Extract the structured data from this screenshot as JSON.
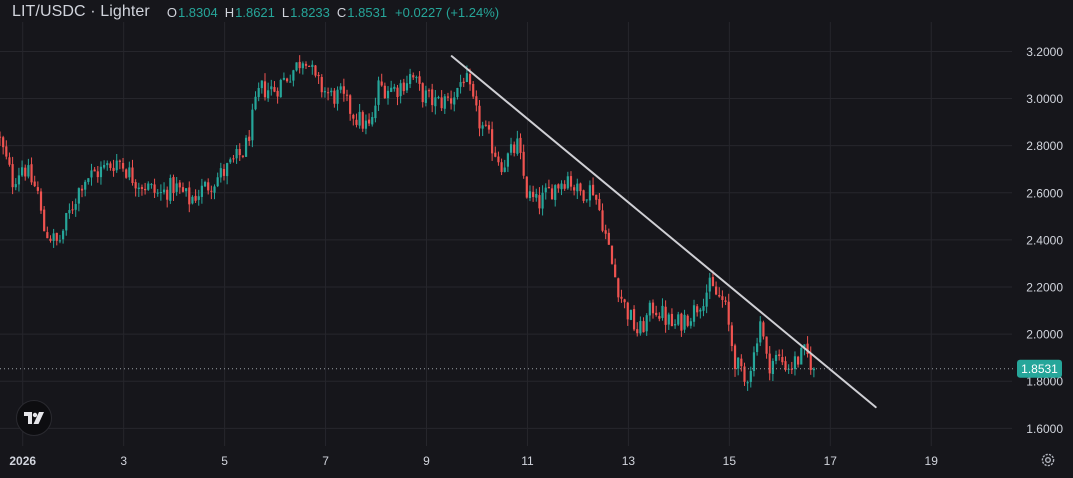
{
  "header": {
    "symbol": "LIT/USDC · Lighter",
    "open_label": "O",
    "open_value": "1.8304",
    "high_label": "H",
    "high_value": "1.8621",
    "low_label": "L",
    "low_value": "1.8233",
    "close_label": "C",
    "close_value": "1.8531",
    "change": "+0.0227 (+1.24%)"
  },
  "price_tag": "1.8531",
  "icons": {
    "logo": "tradingview-logo-icon",
    "settings": "gear-icon"
  },
  "colors": {
    "background": "#16161b",
    "up": "#26a69a",
    "down": "#ef5350",
    "trendline": "#cfcfd4",
    "grid": "#26262c",
    "axis_text": "#d1d4dc",
    "price_tag_bg": "#26a69a"
  },
  "chart_data": {
    "type": "candlestick",
    "title": "LIT/USDC · Lighter",
    "xlabel": "",
    "ylabel": "",
    "xlim": [
      0.55,
      20.6
    ],
    "ylim": [
      1.525,
      3.325
    ],
    "grid": true,
    "y_ticks": [
      "1.6000",
      "1.8000",
      "2.0000",
      "2.2000",
      "2.4000",
      "2.6000",
      "2.8000",
      "3.0000",
      "3.2000"
    ],
    "x_ticks": [
      {
        "day": 1,
        "label": "2026",
        "bold": true
      },
      {
        "day": 3,
        "label": "3"
      },
      {
        "day": 5,
        "label": "5"
      },
      {
        "day": 7,
        "label": "7"
      },
      {
        "day": 9,
        "label": "9"
      },
      {
        "day": 11,
        "label": "11"
      },
      {
        "day": 13,
        "label": "13"
      },
      {
        "day": 15,
        "label": "15"
      },
      {
        "day": 17,
        "label": "17"
      },
      {
        "day": 19,
        "label": "19"
      }
    ],
    "start_day": 0.55,
    "candle_interval_days": 0.0625,
    "close_path": [
      [
        0.55,
        2.82
      ],
      [
        0.8,
        2.65
      ],
      [
        1.0,
        2.72
      ],
      [
        1.3,
        2.6
      ],
      [
        1.4,
        2.45
      ],
      [
        1.7,
        2.38
      ],
      [
        1.9,
        2.5
      ],
      [
        2.2,
        2.66
      ],
      [
        2.6,
        2.7
      ],
      [
        2.9,
        2.74
      ],
      [
        3.2,
        2.66
      ],
      [
        3.5,
        2.62
      ],
      [
        3.7,
        2.59
      ],
      [
        4.0,
        2.63
      ],
      [
        4.3,
        2.57
      ],
      [
        4.6,
        2.62
      ],
      [
        5.0,
        2.69
      ],
      [
        5.4,
        2.78
      ],
      [
        5.7,
        3.04
      ],
      [
        6.0,
        3.04
      ],
      [
        6.4,
        3.13
      ],
      [
        6.6,
        3.19
      ],
      [
        6.8,
        3.07
      ],
      [
        7.1,
        3.01
      ],
      [
        7.3,
        3.01
      ],
      [
        7.6,
        2.92
      ],
      [
        7.9,
        2.87
      ],
      [
        8.05,
        3.05
      ],
      [
        8.4,
        3.04
      ],
      [
        8.7,
        3.1
      ],
      [
        8.9,
        3.02
      ],
      [
        9.2,
        2.98
      ],
      [
        9.5,
        3.0
      ],
      [
        9.75,
        3.1
      ],
      [
        10.0,
        2.92
      ],
      [
        10.3,
        2.8
      ],
      [
        10.5,
        2.72
      ],
      [
        10.8,
        2.8
      ],
      [
        11.0,
        2.59
      ],
      [
        11.2,
        2.55
      ],
      [
        11.5,
        2.62
      ],
      [
        11.8,
        2.67
      ],
      [
        12.0,
        2.6
      ],
      [
        12.3,
        2.62
      ],
      [
        12.5,
        2.47
      ],
      [
        12.7,
        2.27
      ],
      [
        12.9,
        2.13
      ],
      [
        13.2,
        2.0
      ],
      [
        13.5,
        2.12
      ],
      [
        13.9,
        2.03
      ],
      [
        14.3,
        2.1
      ],
      [
        14.6,
        2.2
      ],
      [
        14.9,
        2.13
      ],
      [
        15.1,
        1.9
      ],
      [
        15.3,
        1.79
      ],
      [
        15.5,
        1.92
      ],
      [
        15.6,
        2.08
      ],
      [
        15.75,
        1.87
      ],
      [
        15.95,
        1.9
      ],
      [
        16.2,
        1.86
      ],
      [
        16.5,
        1.92
      ],
      [
        16.7,
        1.853
      ]
    ],
    "trendline": {
      "x1": 9.5,
      "y1": 3.18,
      "x2": 17.9,
      "y2": 1.69
    },
    "last_price": 1.8531
  }
}
